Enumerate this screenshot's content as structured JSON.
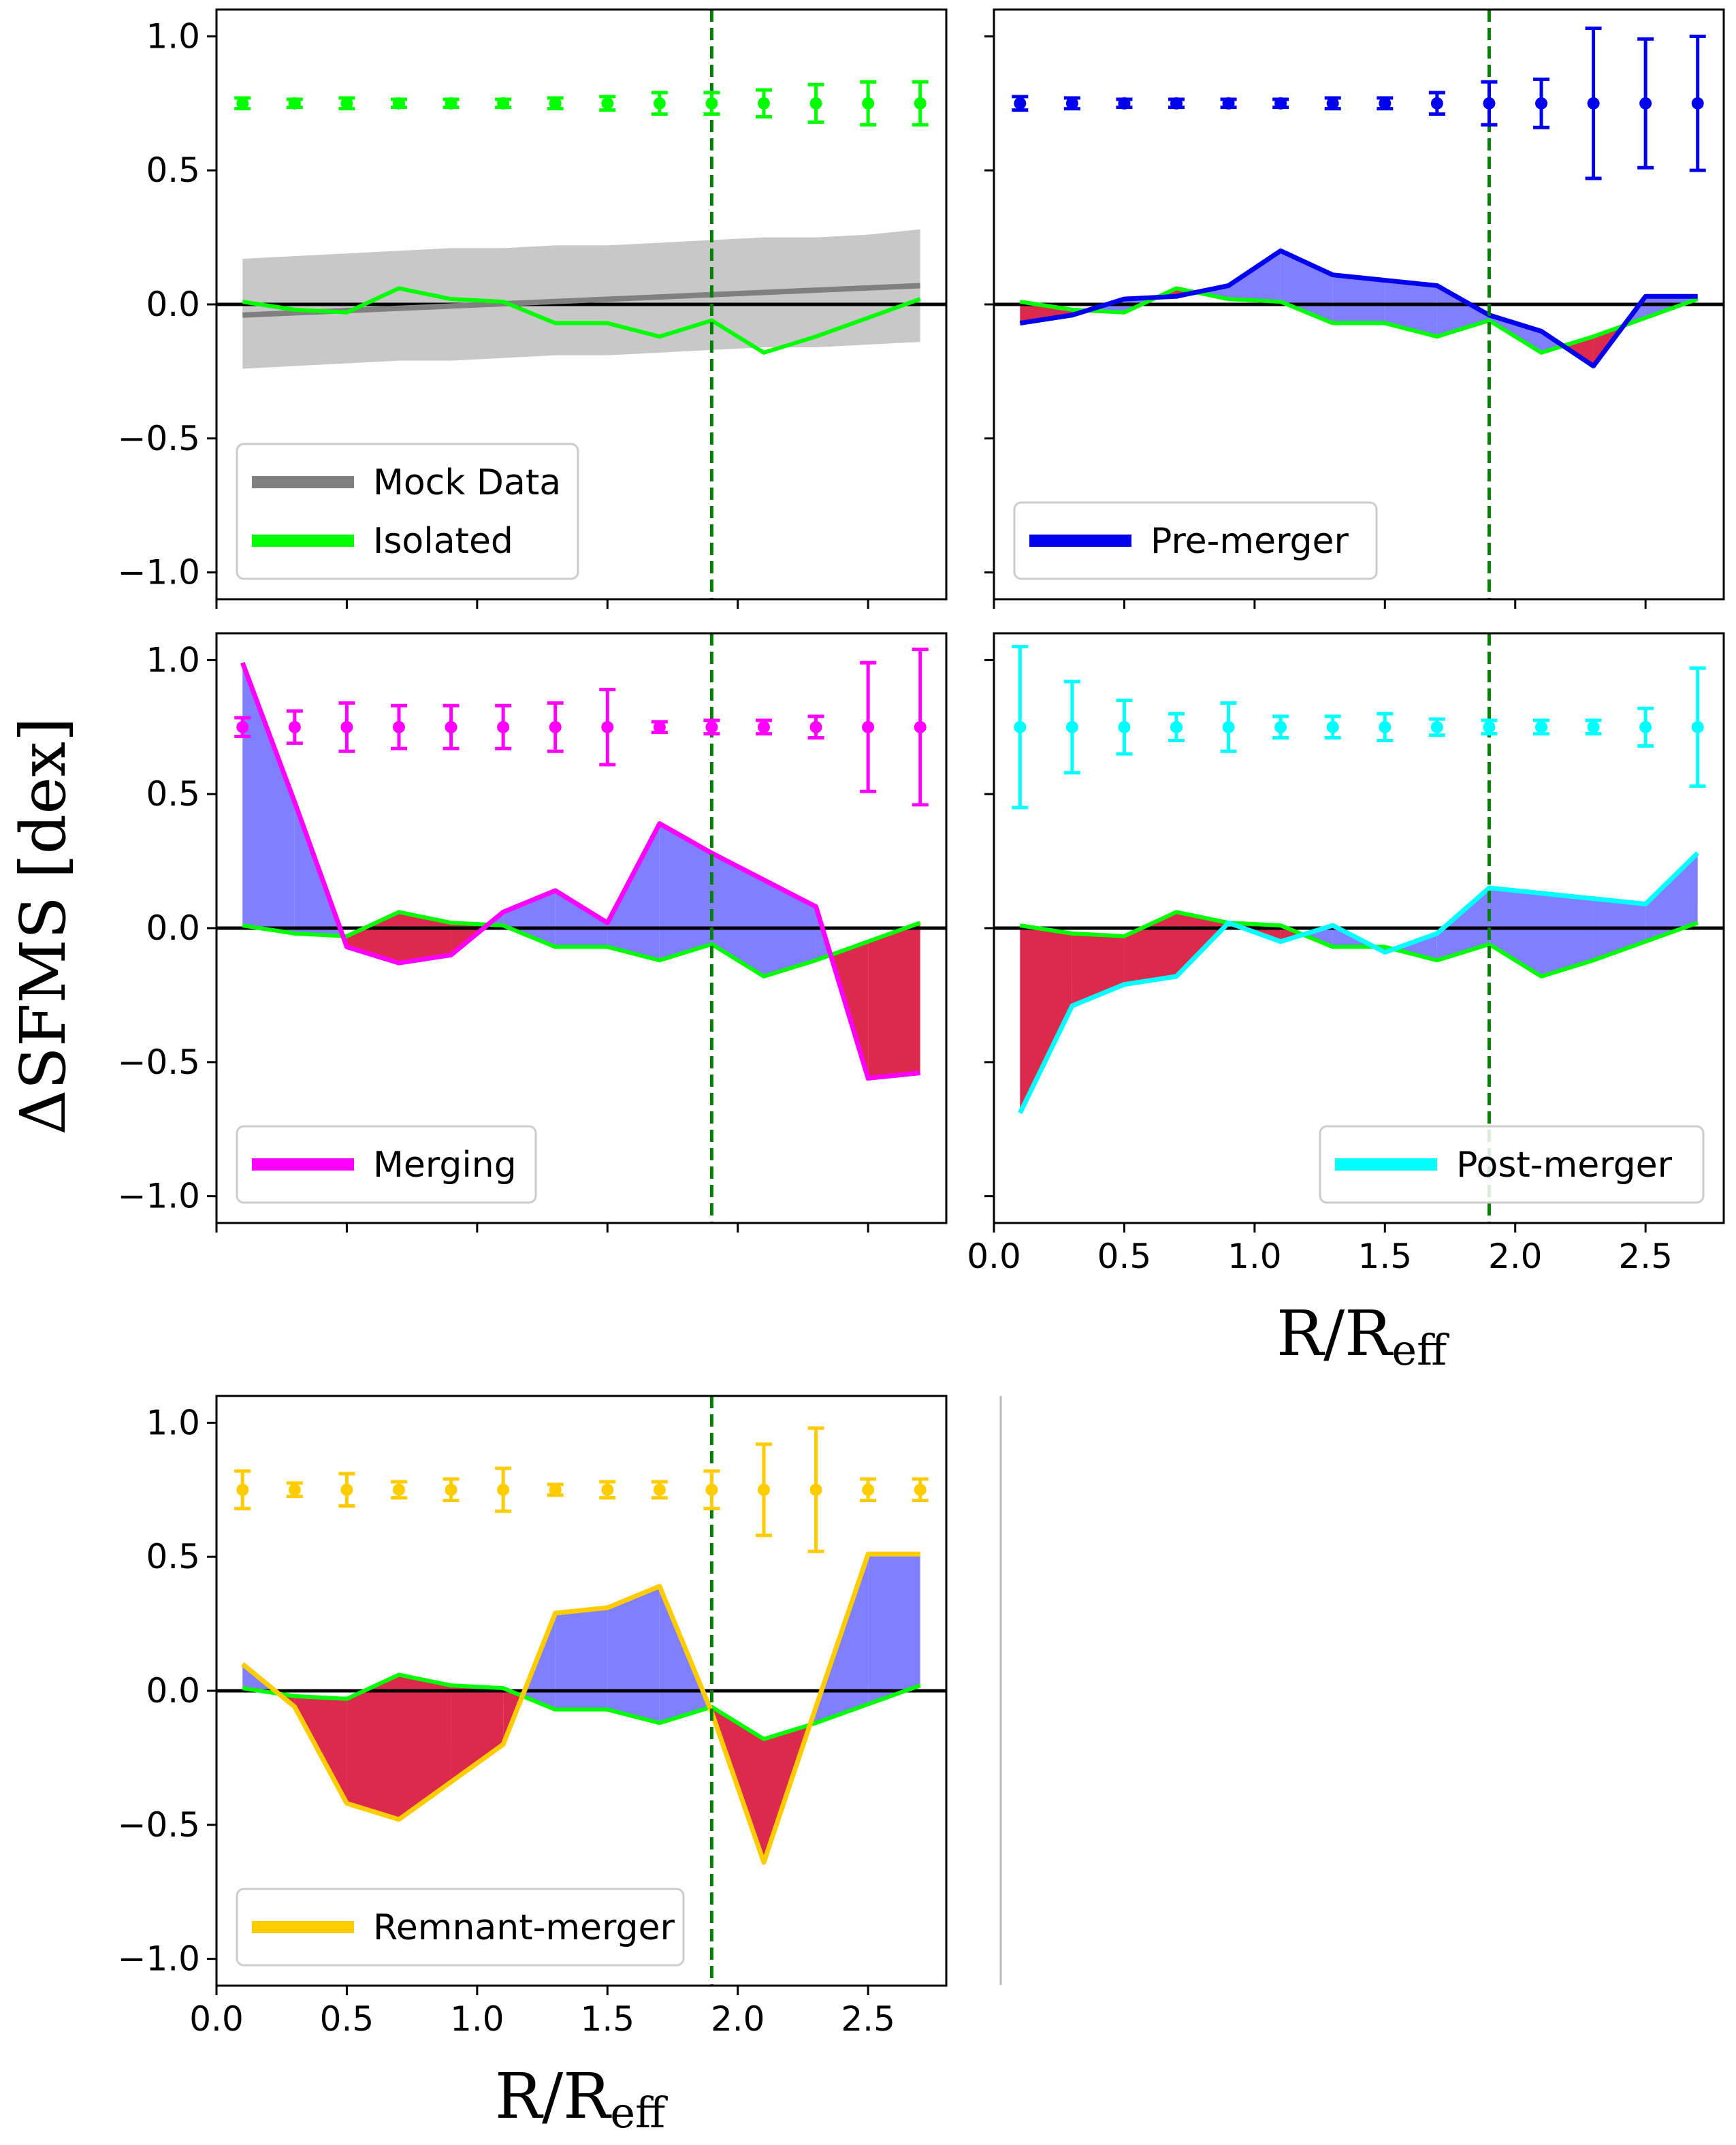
{
  "figure": {
    "ylabel_main": "ΔSFMS",
    "ylabel_unit": "[dex]",
    "xlabel_main": "R/R",
    "xlabel_sub": "eff"
  },
  "colors": {
    "isolated": "#00ff00",
    "mock": "#808080",
    "mock_band": "#c8c8c8",
    "above": "#7f7fff",
    "below": "#dc2a4c",
    "vline": "#008000",
    "zero": "#000000"
  },
  "chart_data": [
    {
      "type": "line",
      "panel": "isolated",
      "title": "",
      "ylim": [
        -1.1,
        1.1
      ],
      "xlim": [
        0.0,
        2.8
      ],
      "xticks": [
        0.0,
        0.5,
        1.0,
        1.5,
        2.0,
        2.5
      ],
      "yticks": [
        -1.0,
        -0.5,
        0.0,
        0.5,
        1.0
      ],
      "show_xticklabels": false,
      "show_yticklabels": true,
      "legend_position": "lower-left",
      "vline_x": 1.9,
      "x": [
        0.1,
        0.3,
        0.5,
        0.7,
        0.9,
        1.1,
        1.3,
        1.5,
        1.7,
        1.9,
        2.1,
        2.3,
        2.5,
        2.7
      ],
      "series": [
        {
          "name": "Mock Data",
          "color": "#808080",
          "x": [
            0.1,
            2.7
          ],
          "values": [
            -0.04,
            0.07
          ],
          "band_upper": [
            0.17,
            0.18,
            0.19,
            0.2,
            0.21,
            0.21,
            0.22,
            0.22,
            0.23,
            0.24,
            0.25,
            0.25,
            0.26,
            0.28
          ],
          "band_lower": [
            -0.24,
            -0.23,
            -0.22,
            -0.21,
            -0.21,
            -0.2,
            -0.19,
            -0.19,
            -0.18,
            -0.17,
            -0.16,
            -0.16,
            -0.15,
            -0.14
          ]
        },
        {
          "name": "Isolated",
          "color": "#00ff00",
          "values": [
            0.01,
            -0.02,
            -0.03,
            0.06,
            0.02,
            0.01,
            -0.07,
            -0.07,
            -0.12,
            -0.06,
            -0.18,
            -0.12,
            -0.05,
            0.02
          ]
        }
      ],
      "errorbars": {
        "color": "#00ff00",
        "y": 0.75,
        "err": [
          0.02,
          0.015,
          0.02,
          0.015,
          0.015,
          0.015,
          0.02,
          0.025,
          0.04,
          0.04,
          0.05,
          0.07,
          0.08,
          0.08
        ]
      }
    },
    {
      "type": "line",
      "panel": "pre-merger",
      "title": "",
      "ylim": [
        -1.1,
        1.1
      ],
      "xlim": [
        0.0,
        2.8
      ],
      "xticks": [
        0.0,
        0.5,
        1.0,
        1.5,
        2.0,
        2.5
      ],
      "yticks": [
        -1.0,
        -0.5,
        0.0,
        0.5,
        1.0
      ],
      "show_xticklabels": false,
      "show_yticklabels": false,
      "legend_position": "lower-left",
      "vline_x": 1.9,
      "x": [
        0.1,
        0.3,
        0.5,
        0.7,
        0.9,
        1.1,
        1.3,
        1.5,
        1.7,
        1.9,
        2.1,
        2.3,
        2.5,
        2.7
      ],
      "series": [
        {
          "name": "Isolated",
          "color": "#00ff00",
          "legend": false,
          "values": [
            0.01,
            -0.02,
            -0.03,
            0.06,
            0.02,
            0.01,
            -0.07,
            -0.07,
            -0.12,
            -0.06,
            -0.18,
            -0.12,
            -0.05,
            0.02
          ]
        },
        {
          "name": "Pre-merger",
          "color": "#0000ee",
          "values": [
            -0.07,
            -0.04,
            0.02,
            0.03,
            0.07,
            0.2,
            0.11,
            0.09,
            0.07,
            -0.04,
            -0.1,
            -0.23,
            0.03,
            0.03
          ]
        }
      ],
      "errorbars": {
        "color": "#0000ee",
        "y": 0.75,
        "err": [
          0.025,
          0.02,
          0.015,
          0.015,
          0.015,
          0.015,
          0.02,
          0.02,
          0.04,
          0.08,
          0.09,
          0.28,
          0.24,
          0.25
        ]
      }
    },
    {
      "type": "line",
      "panel": "merging",
      "title": "",
      "ylim": [
        -1.1,
        1.1
      ],
      "xlim": [
        0.0,
        2.8
      ],
      "xticks": [
        0.0,
        0.5,
        1.0,
        1.5,
        2.0,
        2.5
      ],
      "yticks": [
        -1.0,
        -0.5,
        0.0,
        0.5,
        1.0
      ],
      "show_xticklabels": false,
      "show_yticklabels": true,
      "legend_position": "lower-left",
      "vline_x": 1.9,
      "x": [
        0.1,
        0.3,
        0.5,
        0.7,
        0.9,
        1.1,
        1.3,
        1.5,
        1.7,
        1.9,
        2.1,
        2.3,
        2.5,
        2.7
      ],
      "series": [
        {
          "name": "Isolated",
          "color": "#00ff00",
          "legend": false,
          "values": [
            0.01,
            -0.02,
            -0.03,
            0.06,
            0.02,
            0.01,
            -0.07,
            -0.07,
            -0.12,
            -0.06,
            -0.18,
            -0.12,
            -0.05,
            0.02
          ]
        },
        {
          "name": "Merging",
          "color": "#ff00ff",
          "values": [
            0.99,
            0.47,
            -0.07,
            -0.13,
            -0.1,
            0.06,
            0.14,
            0.02,
            0.39,
            0.28,
            0.18,
            0.08,
            -0.56,
            -0.54
          ]
        }
      ],
      "errorbars": {
        "color": "#ff00ff",
        "y": 0.75,
        "err": [
          0.035,
          0.06,
          0.09,
          0.08,
          0.08,
          0.08,
          0.09,
          0.14,
          0.02,
          0.025,
          0.025,
          0.04,
          0.24,
          0.29
        ]
      }
    },
    {
      "type": "line",
      "panel": "post-merger",
      "title": "",
      "ylim": [
        -1.1,
        1.1
      ],
      "xlim": [
        0.0,
        2.8
      ],
      "xticks": [
        0.0,
        0.5,
        1.0,
        1.5,
        2.0,
        2.5
      ],
      "yticks": [
        -1.0,
        -0.5,
        0.0,
        0.5,
        1.0
      ],
      "show_xticklabels": true,
      "show_yticklabels": false,
      "legend_position": "lower-right",
      "vline_x": 1.9,
      "x": [
        0.1,
        0.3,
        0.5,
        0.7,
        0.9,
        1.1,
        1.3,
        1.5,
        1.7,
        1.9,
        2.1,
        2.3,
        2.5,
        2.7
      ],
      "series": [
        {
          "name": "Isolated",
          "color": "#00ff00",
          "legend": false,
          "values": [
            0.01,
            -0.02,
            -0.03,
            0.06,
            0.02,
            0.01,
            -0.07,
            -0.07,
            -0.12,
            -0.06,
            -0.18,
            -0.12,
            -0.05,
            0.02
          ]
        },
        {
          "name": "Post-merger",
          "color": "#00ffff",
          "values": [
            -0.69,
            -0.29,
            -0.21,
            -0.18,
            0.02,
            -0.05,
            0.01,
            -0.09,
            -0.02,
            0.15,
            0.13,
            0.11,
            0.09,
            0.28
          ]
        }
      ],
      "errorbars": {
        "color": "#00ffff",
        "y": 0.75,
        "err": [
          0.3,
          0.17,
          0.1,
          0.05,
          0.09,
          0.04,
          0.04,
          0.05,
          0.03,
          0.025,
          0.025,
          0.025,
          0.07,
          0.22
        ]
      }
    },
    {
      "type": "line",
      "panel": "remnant-merger",
      "title": "",
      "ylim": [
        -1.1,
        1.1
      ],
      "xlim": [
        0.0,
        2.8
      ],
      "xticks": [
        0.0,
        0.5,
        1.0,
        1.5,
        2.0,
        2.5
      ],
      "yticks": [
        -1.0,
        -0.5,
        0.0,
        0.5,
        1.0
      ],
      "show_xticklabels": true,
      "show_yticklabels": true,
      "legend_position": "lower-left",
      "vline_x": 1.9,
      "x": [
        0.1,
        0.3,
        0.5,
        0.7,
        0.9,
        1.1,
        1.3,
        1.5,
        1.7,
        1.9,
        2.1,
        2.3,
        2.5,
        2.7
      ],
      "series": [
        {
          "name": "Isolated",
          "color": "#00ff00",
          "legend": false,
          "values": [
            0.01,
            -0.02,
            -0.03,
            0.06,
            0.02,
            0.01,
            -0.07,
            -0.07,
            -0.12,
            -0.06,
            -0.18,
            -0.12,
            -0.05,
            0.02
          ]
        },
        {
          "name": "Remnant-merger",
          "color": "#ffcc00",
          "values": [
            0.1,
            -0.06,
            -0.42,
            -0.48,
            -0.34,
            -0.2,
            0.29,
            0.31,
            0.39,
            -0.08,
            -0.64,
            -0.06,
            0.51,
            0.51
          ]
        }
      ],
      "errorbars": {
        "color": "#ffcc00",
        "y": 0.75,
        "err": [
          0.07,
          0.025,
          0.06,
          0.03,
          0.04,
          0.08,
          0.02,
          0.03,
          0.03,
          0.07,
          0.17,
          0.23,
          0.04,
          0.04
        ]
      }
    }
  ]
}
